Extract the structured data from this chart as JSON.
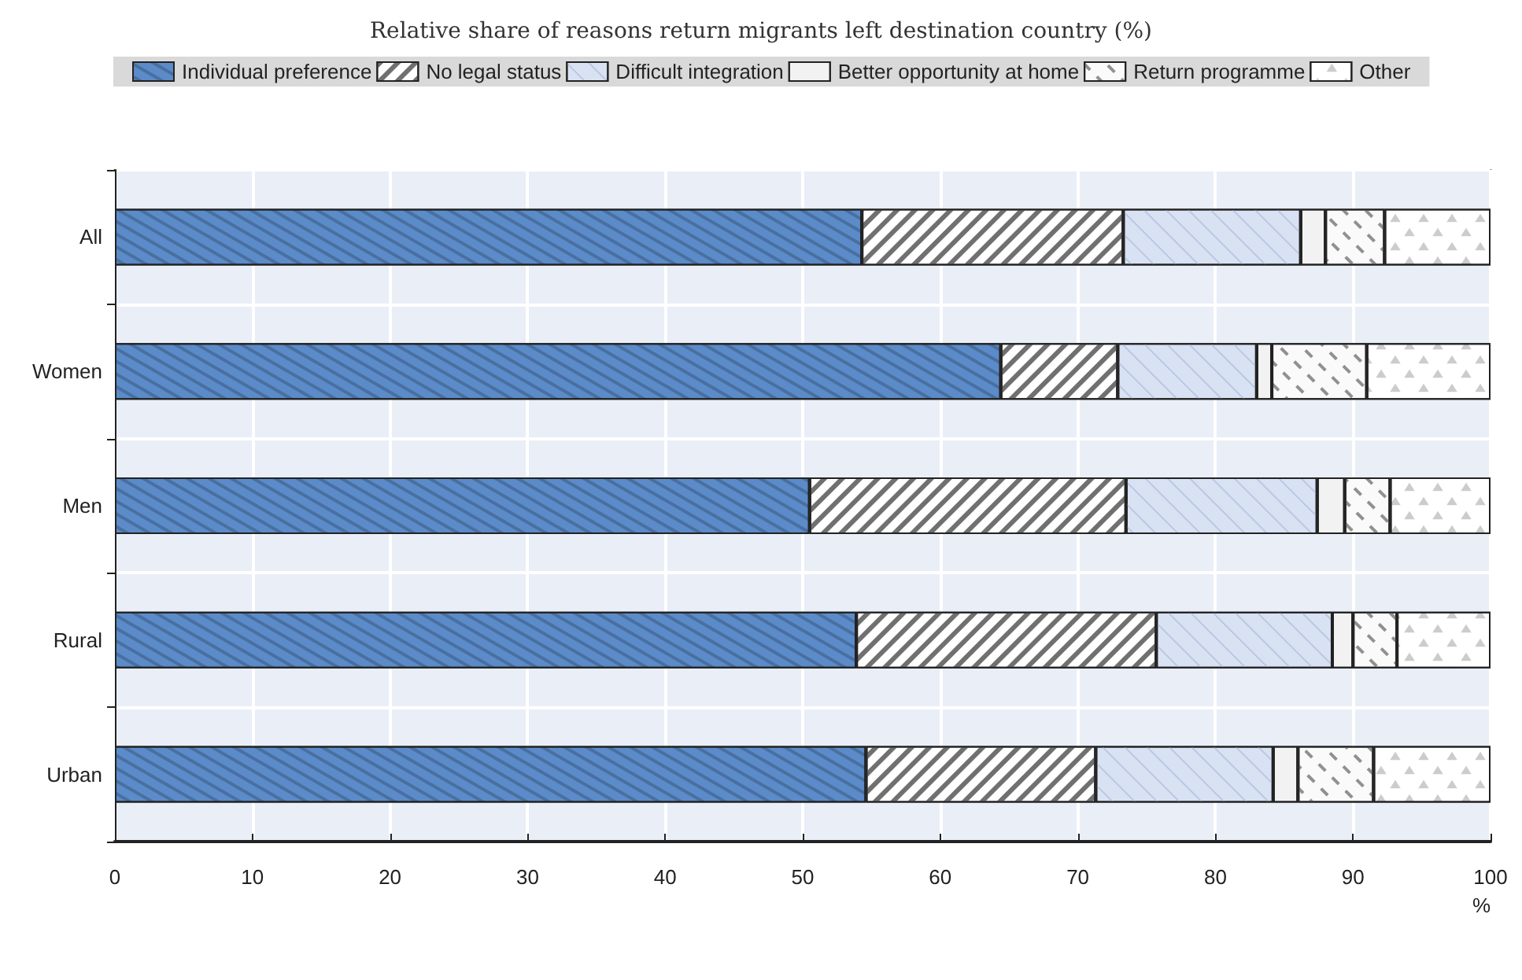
{
  "chart_data": {
    "type": "bar",
    "title": "Relative share of reasons return migrants left destination country (%)",
    "orientation": "horizontal",
    "stacked": true,
    "xlabel": "%",
    "categories": [
      "All",
      "Women",
      "Men",
      "Rural",
      "Urban"
    ],
    "series": [
      {
        "name": "Individual preference",
        "color": "#5b8bc8",
        "values": [
          54.3,
          64.4,
          50.5,
          53.9,
          54.6
        ]
      },
      {
        "name": "No legal status",
        "color": "#ffffff",
        "values": [
          19.0,
          8.5,
          23.0,
          21.8,
          16.7
        ]
      },
      {
        "name": "Difficult integration",
        "color": "#d9e2f3",
        "values": [
          12.9,
          10.1,
          13.9,
          12.8,
          12.9
        ]
      },
      {
        "name": "Better opportunity at home",
        "color": "#f2f2f2",
        "values": [
          1.8,
          1.1,
          2.0,
          1.5,
          1.8
        ]
      },
      {
        "name": "Return programme",
        "color": "#fafafa",
        "values": [
          4.3,
          6.9,
          3.3,
          3.2,
          5.5
        ]
      },
      {
        "name": "Other",
        "color": "#ffffff",
        "values": [
          7.7,
          9.0,
          7.3,
          6.8,
          8.5
        ]
      }
    ],
    "xlim": [
      0,
      100
    ],
    "xticks": [
      0,
      10,
      20,
      30,
      40,
      50,
      60,
      70,
      80,
      90,
      100
    ],
    "grid": true,
    "legend": "top"
  }
}
